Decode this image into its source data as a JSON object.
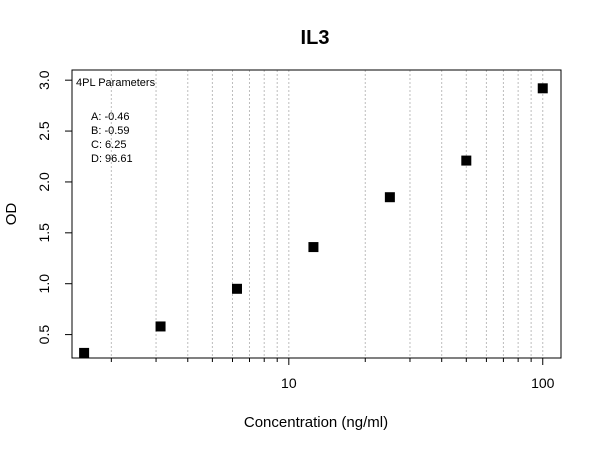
{
  "chart_data": {
    "type": "scatter",
    "title": "IL3",
    "xlabel": "Concentration (ng/ml)",
    "ylabel": "OD",
    "x_scale": "log",
    "xlim": [
      1.4,
      118
    ],
    "ylim": [
      0.27,
      3.1
    ],
    "x_major_ticks": [
      10,
      100
    ],
    "x_tick_labels": [
      "10",
      "100"
    ],
    "y_ticks": [
      0.5,
      1.0,
      1.5,
      2.0,
      2.5,
      3.0
    ],
    "y_tick_labels": [
      "0.5",
      "1.0",
      "1.5",
      "2.0",
      "2.5",
      "3.0"
    ],
    "grid": "vertical dotted at minor and major log ticks",
    "marker": "filled-square",
    "points": {
      "x": [
        1.5625,
        3.125,
        6.25,
        12.5,
        25,
        50,
        100
      ],
      "y": [
        0.32,
        0.58,
        0.95,
        1.36,
        1.85,
        2.21,
        2.92
      ]
    },
    "fit": {
      "model": "4PL",
      "A": -0.46,
      "B": -0.59,
      "C": 6.25,
      "D": 96.61
    },
    "annotation": {
      "heading": "4PL Parameters",
      "lines": [
        "A: -0.46",
        "B: -0.59",
        "C: 6.25",
        "D: 96.61"
      ],
      "placement": "top-left"
    }
  }
}
